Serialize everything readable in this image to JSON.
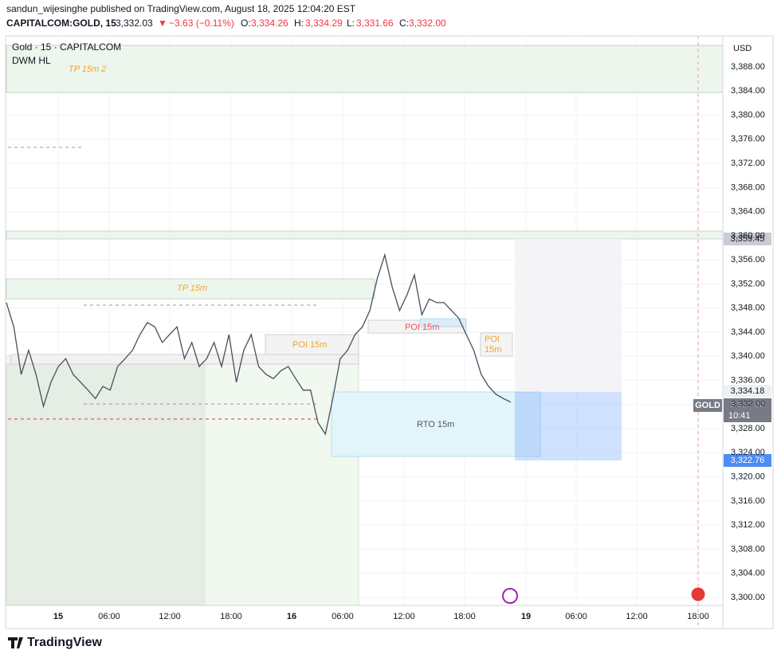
{
  "header": {
    "line1": "sandun_wijesinghe published on TradingView.com, August 18, 2025 12:04:20 EST",
    "symbol": "CAPITALCOM:GOLD, 15",
    "last": "3,332.03",
    "arrow": "▼",
    "change": "−3.63 (−0.11%)",
    "o_label": "O:",
    "o": "3,334.26",
    "h_label": "H:",
    "h": "3,334.29",
    "l_label": "L:",
    "l": "3,331.66",
    "c_label": "C:",
    "c": "3,332.00"
  },
  "legend": {
    "title": "Gold · 15 · CAPITALCOM",
    "indicator": "DWM HL"
  },
  "annotations": {
    "tp2": "TP 15m 2",
    "tp": "TP 15m",
    "poi_left": "POI 15m",
    "poi_mid": "POI 15m",
    "poi_right_1": "POI",
    "poi_right_2": "15m",
    "rto": "RTO 15m"
  },
  "price_axis": {
    "currency": "USD",
    "labels": [
      "3,388.00",
      "3,384.00",
      "3,380.00",
      "3,376.00",
      "3,372.00",
      "3,368.00",
      "3,364.00",
      "3,360.00",
      "3,356.00",
      "3,352.00",
      "3,348.00",
      "3,344.00",
      "3,340.00",
      "3,336.00",
      "3,332.00",
      "3,328.00",
      "3,324.00",
      "3,320.00",
      "3,316.00",
      "3,312.00",
      "3,308.00",
      "3,304.00",
      "3,300.00"
    ]
  },
  "price_tags": {
    "high": "3,359.45",
    "upper": "3,334.18",
    "symbol": "GOLD",
    "current": "3,332.00",
    "countdown": "10:41",
    "lower": "3,322.76"
  },
  "time_axis": {
    "labels": [
      "15",
      "06:00",
      "12:00",
      "18:00",
      "16",
      "06:00",
      "12:00",
      "18:00",
      "19",
      "06:00",
      "12:00",
      "18:00"
    ]
  },
  "price_series": {
    "values": [
      3348.9,
      3344.9,
      3337,
      3341,
      3337,
      3331.7,
      3335.7,
      3338.3,
      3339.6,
      3337,
      3335.7,
      3334.4,
      3333,
      3335,
      3334.4,
      3338.3,
      3339.6,
      3341,
      3343.6,
      3345.6,
      3344.9,
      3342.3,
      3343.6,
      3344.9,
      3339.6,
      3342.3,
      3338.3,
      3339.6,
      3342.3,
      3338.3,
      3343.6,
      3335.7,
      3341,
      3343.6,
      3338.3,
      3337,
      3336.3,
      3337.6,
      3338.3,
      3336.3,
      3334.4,
      3334.4,
      3329,
      3327.1,
      3333,
      3339.6,
      3341,
      3343.6,
      3344.9,
      3347.6,
      3352.9,
      3356.8,
      3351.5,
      3347.6,
      3350.2,
      3353.5,
      3346.9,
      3349.5,
      3348.9,
      3348.9,
      3347.6,
      3346.3,
      3343.6,
      3341,
      3337,
      3335,
      3333.7,
      3333,
      3332.4
    ]
  },
  "footer": {
    "brand": "TradingView"
  }
}
